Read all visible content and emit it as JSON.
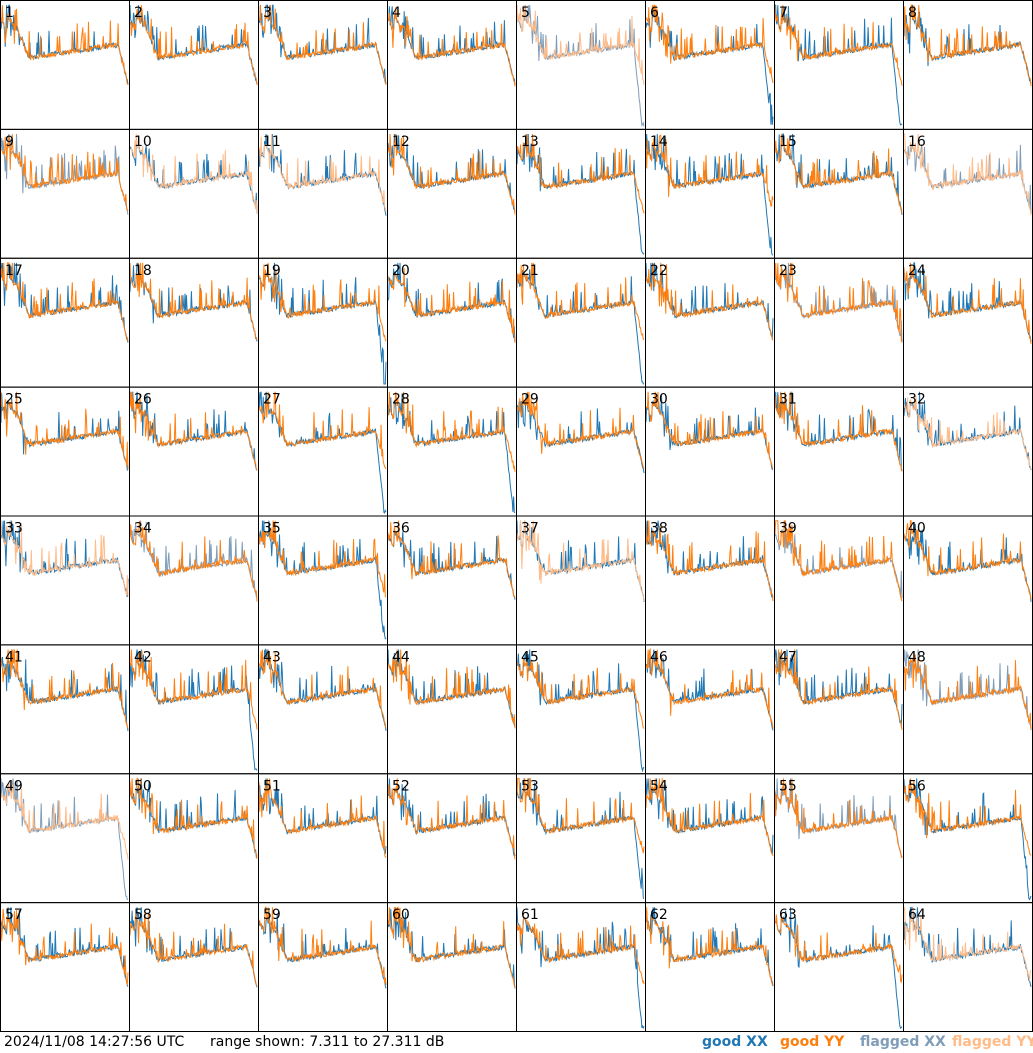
{
  "chart_data": {
    "type": "line",
    "panel_count": 64,
    "panel_labels": [
      "1",
      "2",
      "3",
      "4",
      "5",
      "6",
      "7",
      "8",
      "9",
      "10",
      "11",
      "12",
      "13",
      "14",
      "15",
      "16",
      "17",
      "18",
      "19",
      "20",
      "21",
      "22",
      "23",
      "24",
      "25",
      "26",
      "27",
      "28",
      "29",
      "30",
      "31",
      "32",
      "33",
      "34",
      "35",
      "36",
      "37",
      "38",
      "39",
      "40",
      "41",
      "42",
      "43",
      "44",
      "45",
      "46",
      "47",
      "48",
      "49",
      "50",
      "51",
      "52",
      "53",
      "54",
      "55",
      "56",
      "57",
      "58",
      "59",
      "60",
      "61",
      "62",
      "63",
      "64"
    ],
    "y_range_db": [
      7.311,
      27.311
    ],
    "legend": [
      {
        "name": "good XX",
        "color": "#1f77b4"
      },
      {
        "name": "good YY",
        "color": "#ff7f0e"
      },
      {
        "name": "flagged XX",
        "color": "#7f9db9"
      },
      {
        "name": "flagged YY",
        "color": "#ffbb88"
      }
    ],
    "flagged": {
      "xx": [
        5,
        9,
        16,
        23,
        34,
        39,
        48,
        49,
        55
      ],
      "yy": [
        5,
        10,
        11,
        16,
        32,
        33,
        37,
        49,
        64
      ]
    }
  },
  "footer": {
    "timestamp": "2024/11/08 14:27:56 UTC",
    "range": "range shown: 7.311 to 27.311 dB"
  },
  "colors": {
    "good_xx": "#1f77b4",
    "good_yy": "#ff7f0e",
    "flagged_xx": "#7f9db9",
    "flagged_yy": "#ffbb88"
  }
}
